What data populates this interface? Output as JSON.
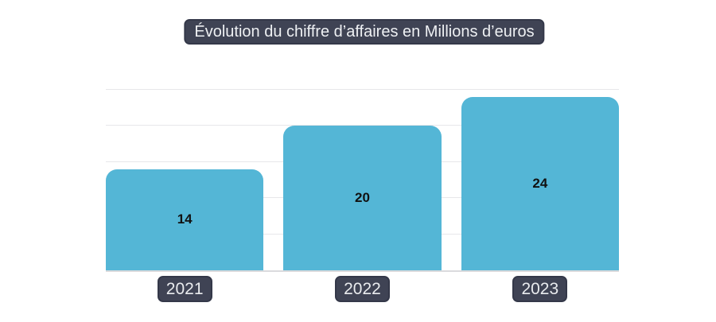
{
  "chart_data": {
    "type": "bar",
    "title": "Évolution du chiffre d’affaires en Millions d’euros",
    "categories": [
      "2021",
      "2022",
      "2023"
    ],
    "values": [
      14,
      20,
      24
    ],
    "xlabel": "",
    "ylabel": "",
    "ylim": [
      0,
      27.5
    ],
    "gridlines": [
      5,
      10,
      15,
      20,
      25
    ],
    "grid": "horizontal-only",
    "legend_position": "none",
    "value_labels": "centered-inside-bars",
    "colors": {
      "bar_fill": "#54b6d6",
      "value_label": "#111111",
      "badge_background": "#3f4354",
      "badge_border": "#343849",
      "badge_text": "#eef0f3",
      "gridline": "#e7e7ea",
      "baseline": "#dadadd",
      "background": "#ffffff"
    }
  }
}
